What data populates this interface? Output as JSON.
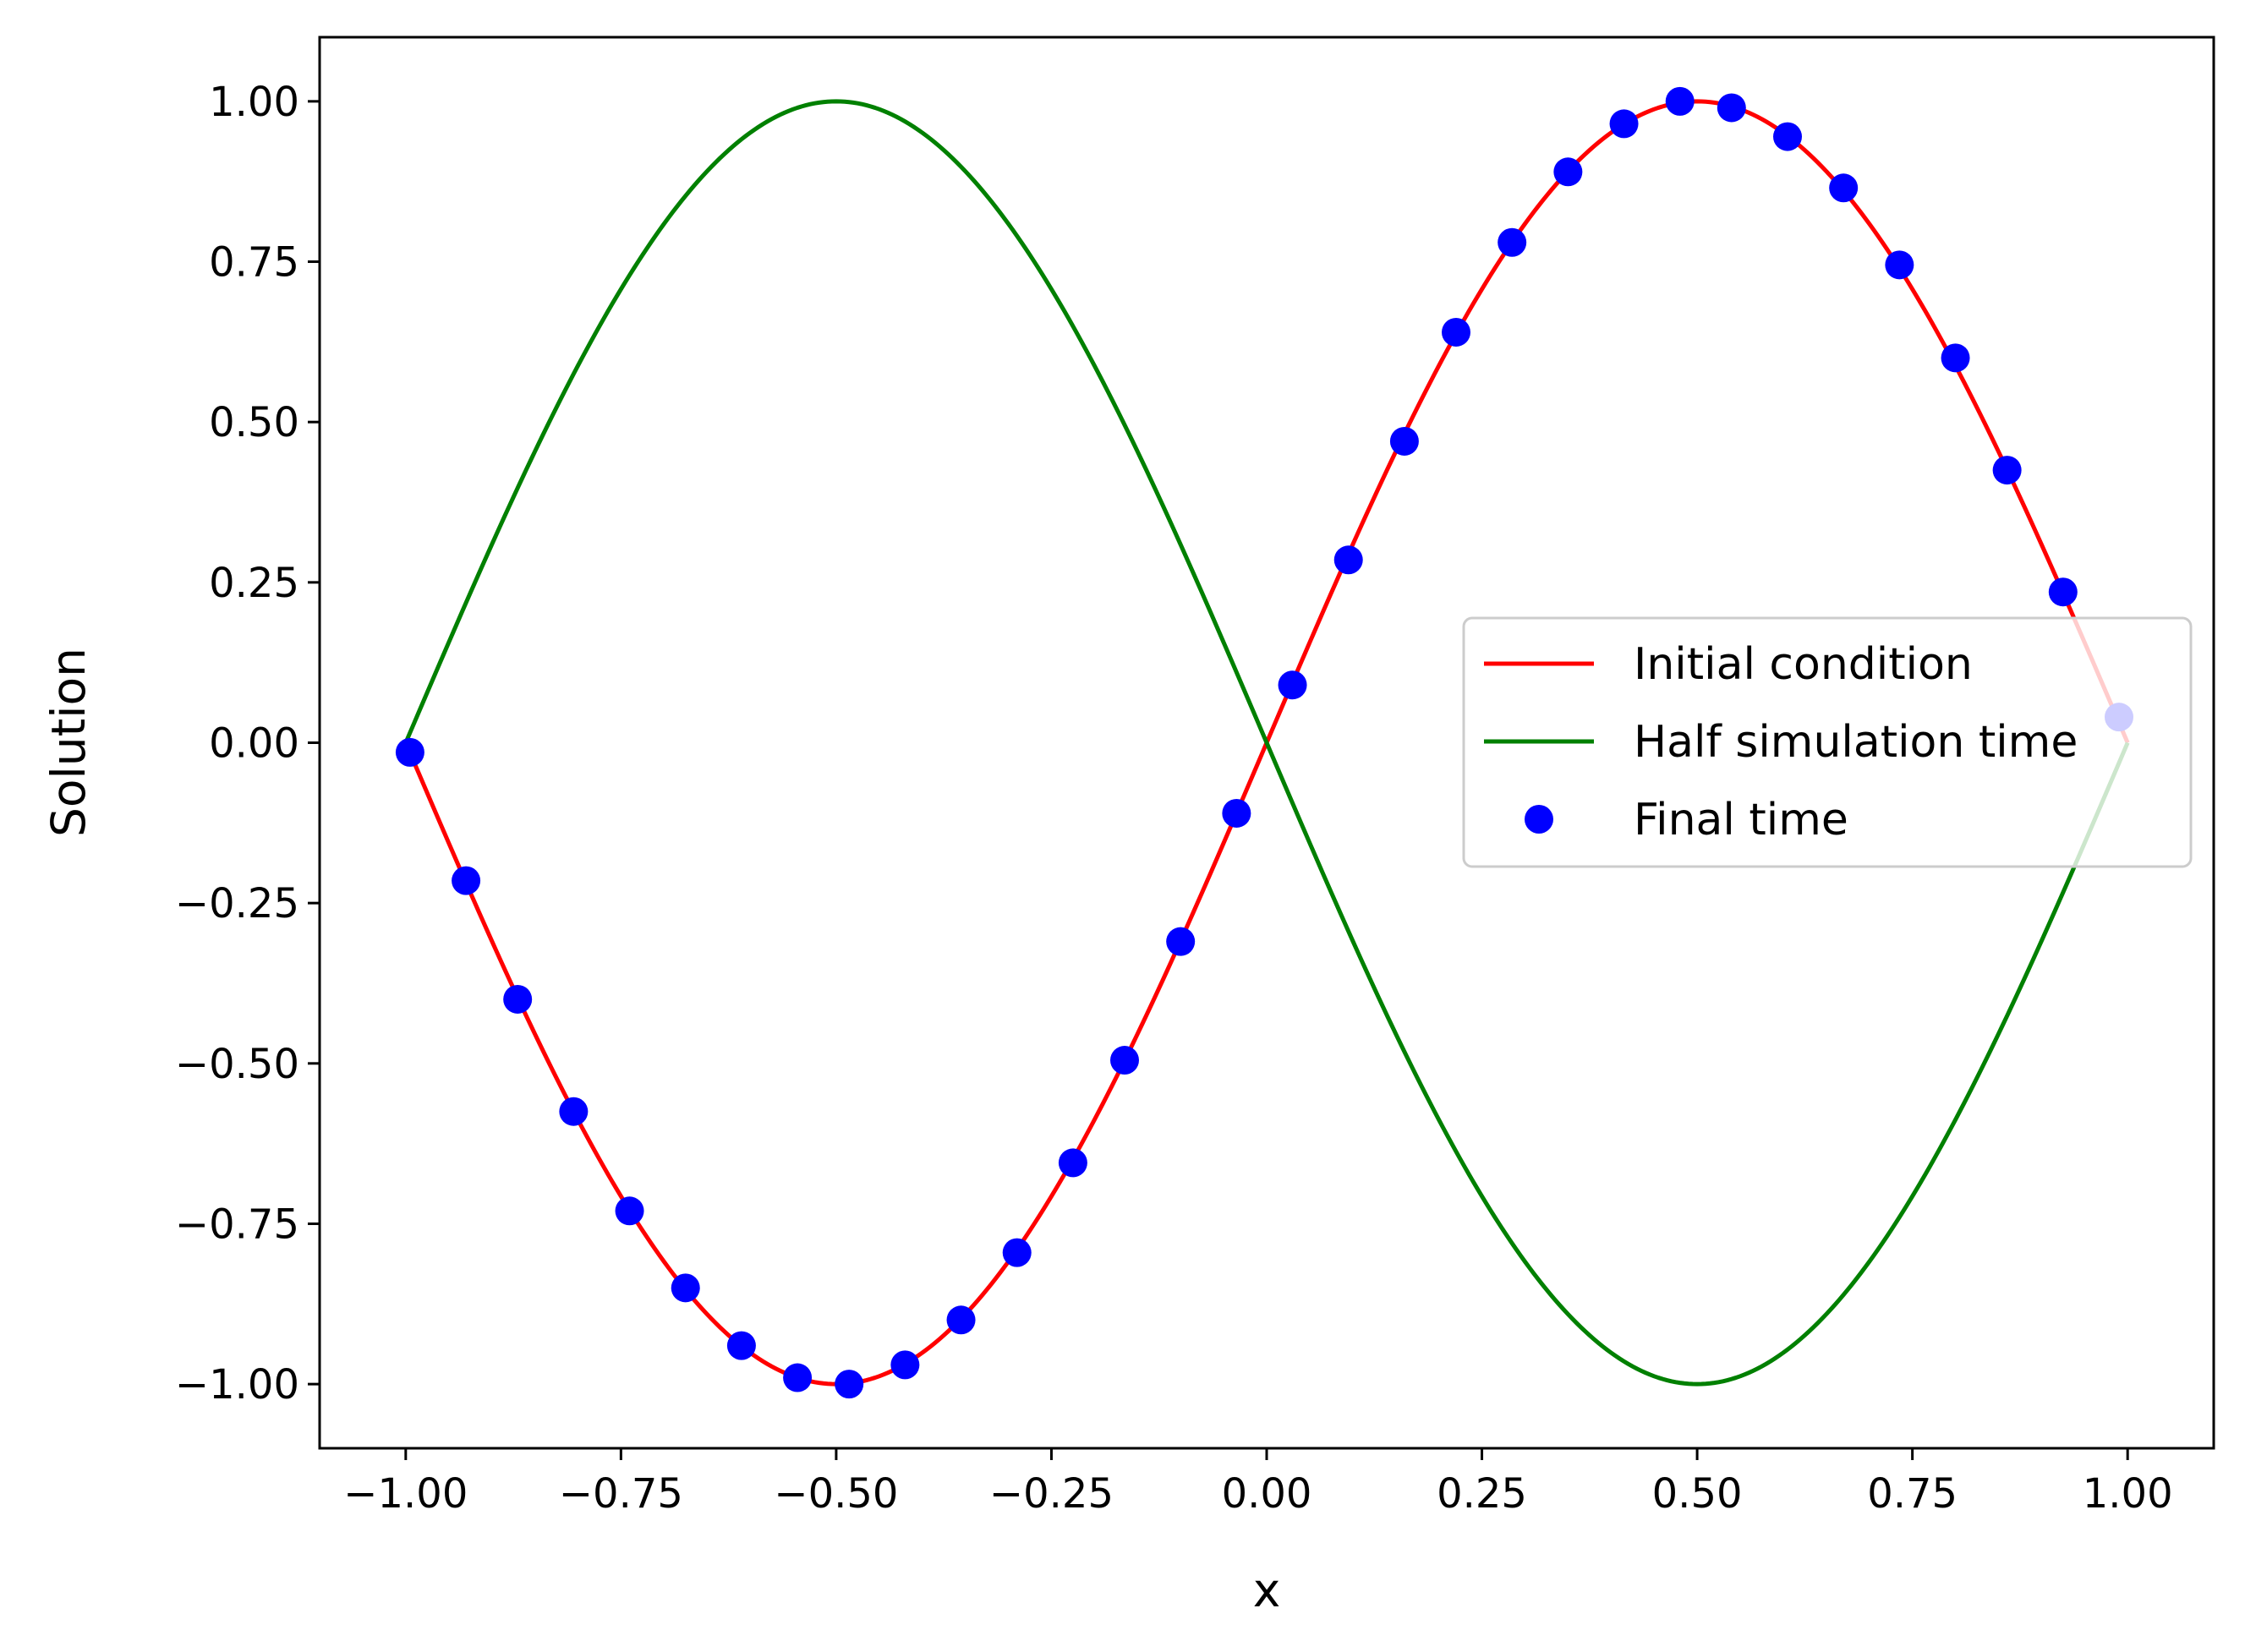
{
  "chart_data": {
    "type": "line",
    "title": "",
    "xlabel": "x",
    "ylabel": "Solution",
    "xlim": [
      -1.1,
      1.1
    ],
    "ylim": [
      -1.1,
      1.1
    ],
    "x_ticks": [
      -1.0,
      -0.75,
      -0.5,
      -0.25,
      0.0,
      0.25,
      0.5,
      0.75,
      1.0
    ],
    "x_tick_labels": [
      "−1.00",
      "−0.75",
      "−0.50",
      "−0.25",
      "0.00",
      "0.25",
      "0.50",
      "0.75",
      "1.00"
    ],
    "y_ticks": [
      1.0,
      0.75,
      0.5,
      0.25,
      0.0,
      -0.25,
      -0.5,
      -0.75,
      -1.0
    ],
    "y_tick_labels": [
      "1.00",
      "0.75",
      "0.50",
      "0.25",
      "0.00",
      "−0.25",
      "−0.50",
      "−0.75",
      "−1.00"
    ],
    "grid": false,
    "legend_position": "center-right",
    "series": [
      {
        "name": "Initial condition",
        "style": "line",
        "color": "#ff0000",
        "function": "sin(pi*x)",
        "x_range": [
          -1.0,
          1.0
        ]
      },
      {
        "name": "Half simulation time",
        "style": "line",
        "color": "#008000",
        "function": "-sin(pi*x)",
        "x_range": [
          -1.0,
          1.0
        ]
      },
      {
        "name": "Final time",
        "style": "markers",
        "color": "#0000ff",
        "x": [
          -0.995,
          -0.93,
          -0.87,
          -0.805,
          -0.74,
          -0.675,
          -0.61,
          -0.545,
          -0.485,
          -0.42,
          -0.355,
          -0.29,
          -0.225,
          -0.165,
          -0.1,
          -0.035,
          0.03,
          0.095,
          0.16,
          0.22,
          0.285,
          0.35,
          0.415,
          0.48,
          0.54,
          0.605,
          0.67,
          0.735,
          0.8,
          0.86,
          0.925,
          0.99
        ],
        "y": [
          -0.015,
          -0.215,
          -0.4,
          -0.575,
          -0.73,
          -0.85,
          -0.94,
          -0.99,
          -1.0,
          -0.97,
          -0.9,
          -0.795,
          -0.655,
          -0.495,
          -0.31,
          -0.11,
          0.09,
          0.285,
          0.47,
          0.64,
          0.78,
          0.89,
          0.965,
          1.0,
          0.99,
          0.945,
          0.865,
          0.745,
          0.6,
          0.425,
          0.235,
          0.04
        ]
      }
    ]
  }
}
